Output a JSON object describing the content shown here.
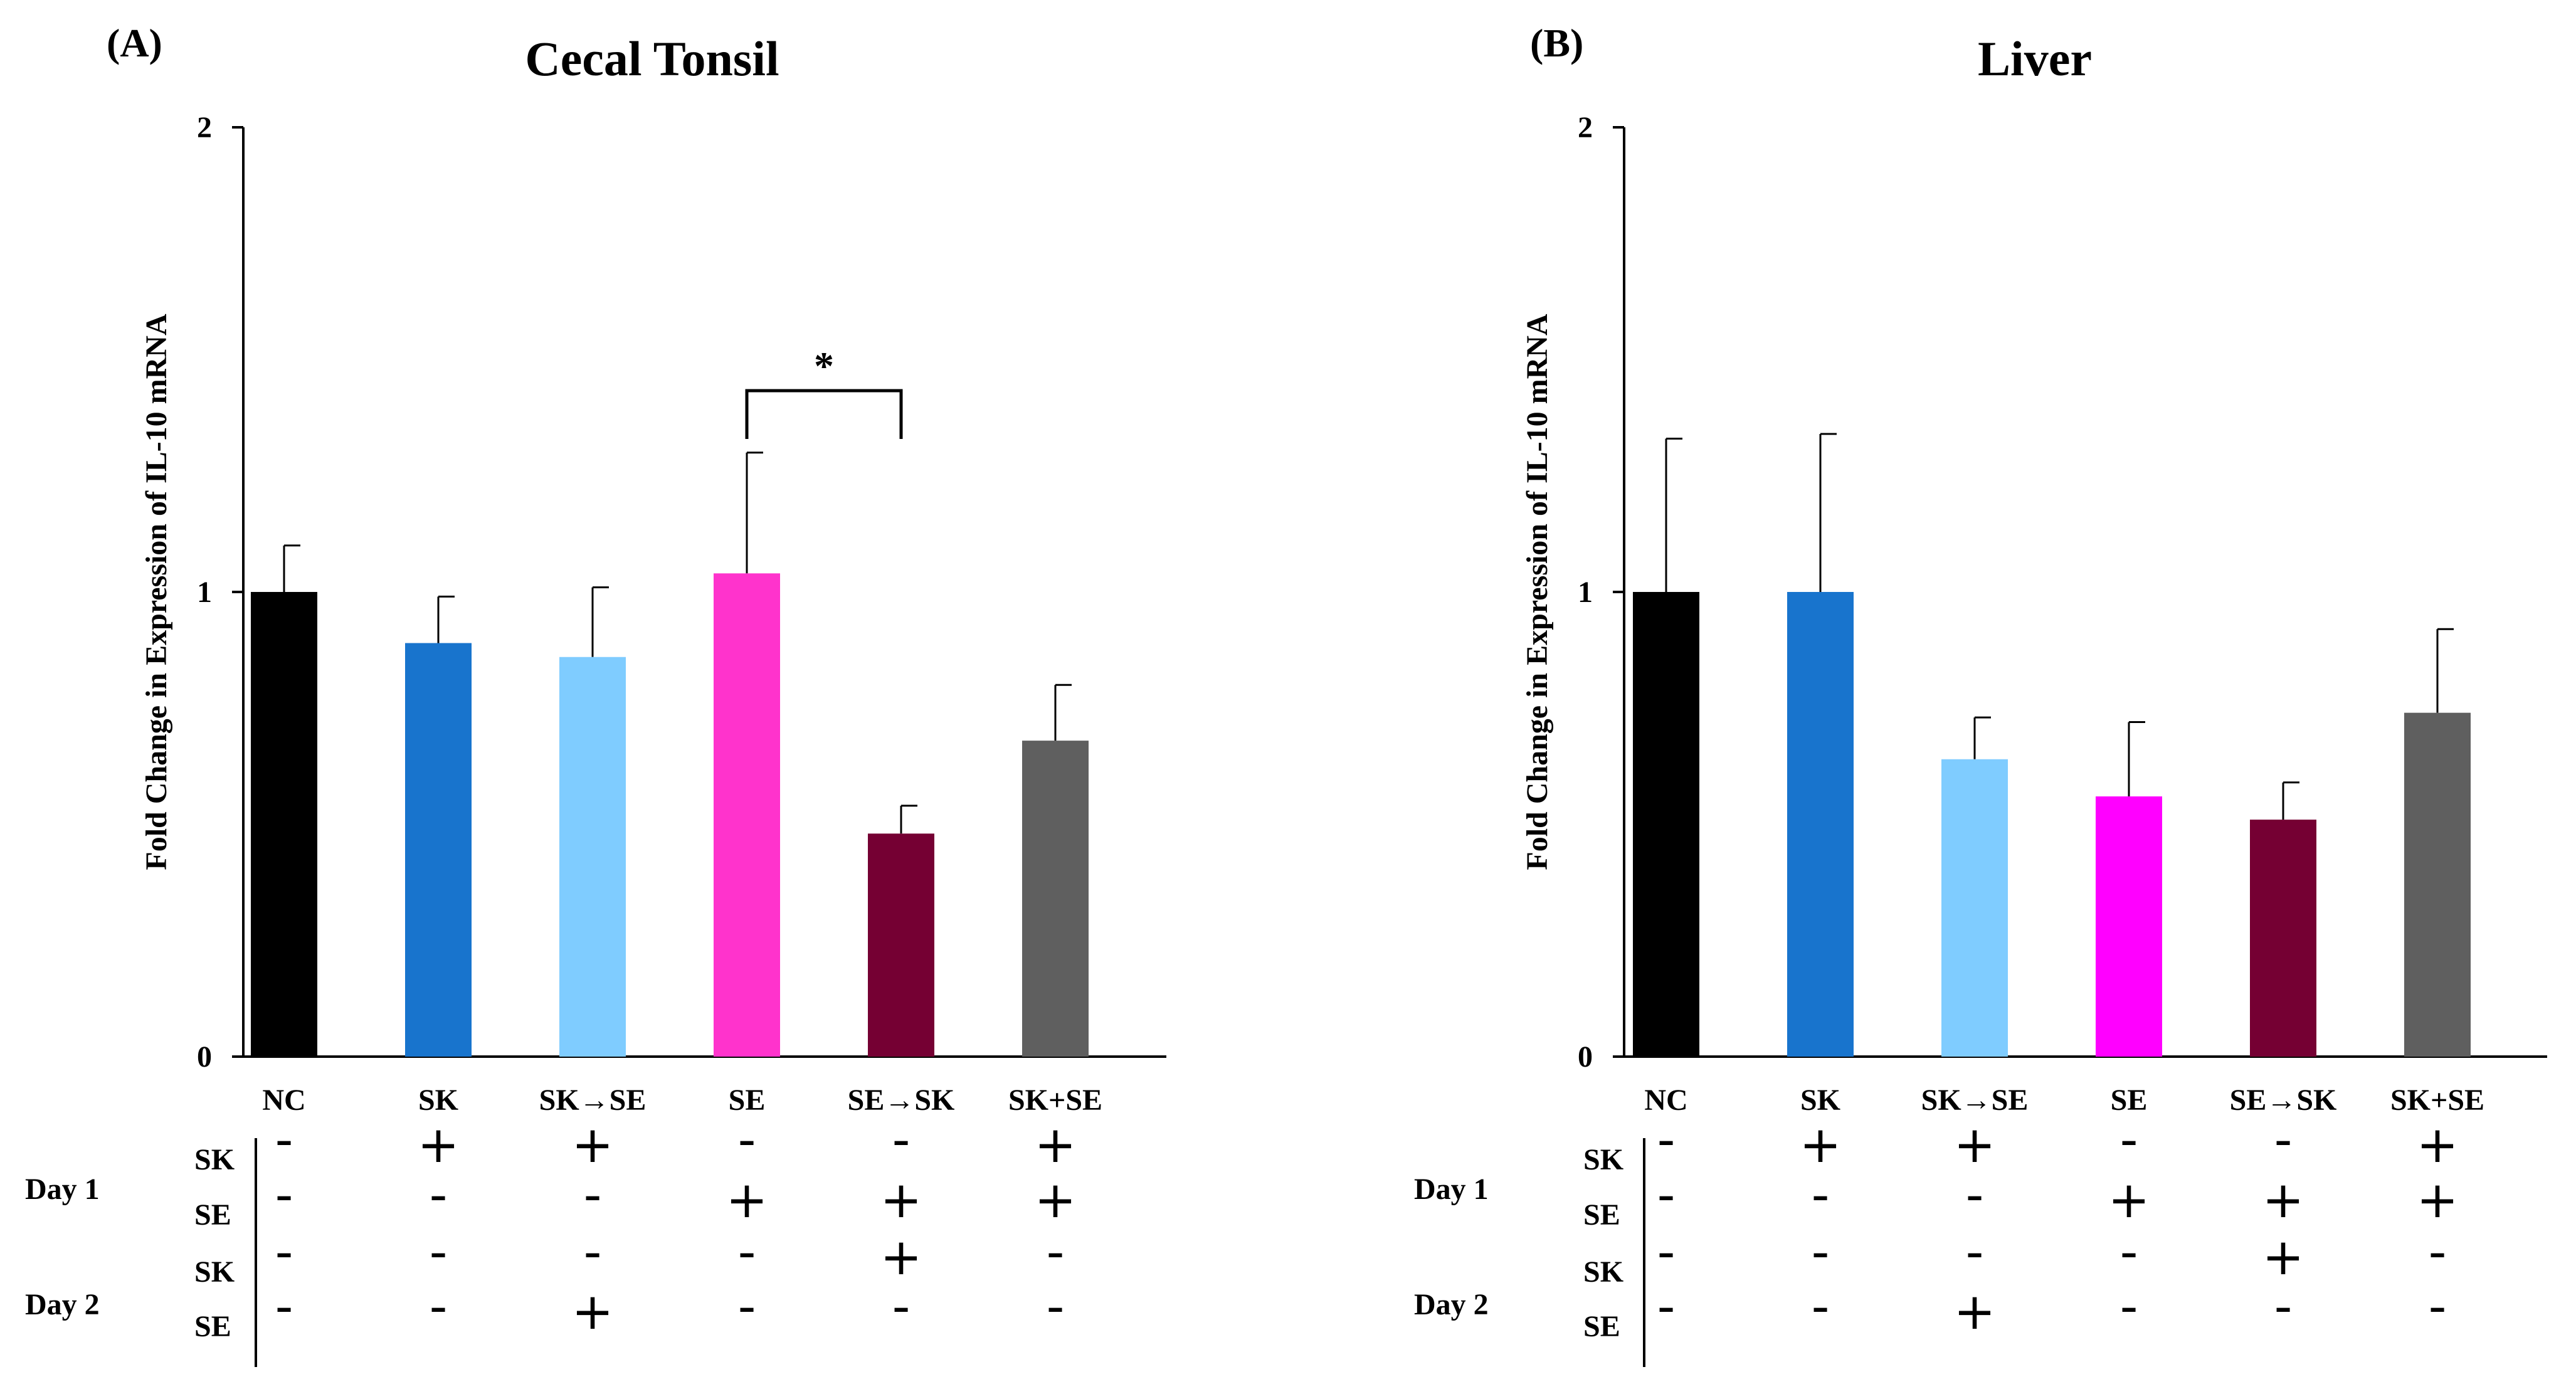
{
  "chart_data": [
    {
      "type": "bar",
      "panel_label": "(A)",
      "title": "Cecal Tonsil",
      "ylabel": "Fold Change in Expression of IL-10 mRNA",
      "xlabel": "",
      "ylim": [
        0,
        2
      ],
      "yticks": [
        "0",
        "1",
        "2"
      ],
      "categories": [
        "NC",
        "SK",
        "SK→SE",
        "SE",
        "SE→SK",
        "SK+SE"
      ],
      "values": [
        1.0,
        0.89,
        0.86,
        1.04,
        0.48,
        0.68
      ],
      "errors": [
        0.1,
        0.1,
        0.15,
        0.26,
        0.06,
        0.12
      ],
      "colors": [
        "#000000",
        "#1874CD",
        "#7FCCFF",
        "#FF33CC",
        "#750033",
        "#5F5F5F"
      ],
      "significance": {
        "between": [
          3,
          4
        ],
        "label": "*"
      },
      "treatment_table": {
        "groups": [
          {
            "label": "Day 1",
            "rows": [
              {
                "label": "SK",
                "marks": [
                  "-",
                  "+",
                  "+",
                  "-",
                  "-",
                  "+"
                ]
              },
              {
                "label": "SE",
                "marks": [
                  "-",
                  "-",
                  "-",
                  "+",
                  "+",
                  "+"
                ]
              }
            ]
          },
          {
            "label": "Day 2",
            "rows": [
              {
                "label": "SK",
                "marks": [
                  "-",
                  "-",
                  "-",
                  "-",
                  "+",
                  "-"
                ]
              },
              {
                "label": "SE",
                "marks": [
                  "-",
                  "-",
                  "+",
                  "-",
                  "-",
                  "-"
                ]
              }
            ]
          }
        ]
      }
    },
    {
      "type": "bar",
      "panel_label": "(B)",
      "title": "Liver",
      "ylabel": "Fold Change in Expression of IL-10 mRNA",
      "xlabel": "",
      "ylim": [
        0,
        2
      ],
      "yticks": [
        "0",
        "1",
        "2"
      ],
      "categories": [
        "NC",
        "SK",
        "SK→SE",
        "SE",
        "SE→SK",
        "SK+SE"
      ],
      "values": [
        1.0,
        1.0,
        0.64,
        0.56,
        0.51,
        0.74
      ],
      "errors": [
        0.33,
        0.34,
        0.09,
        0.16,
        0.08,
        0.18
      ],
      "colors": [
        "#000000",
        "#1874CD",
        "#7FCCFF",
        "#FF00FF",
        "#750033",
        "#5F5F5F"
      ],
      "treatment_table": {
        "groups": [
          {
            "label": "Day 1",
            "rows": [
              {
                "label": "SK",
                "marks": [
                  "-",
                  "+",
                  "+",
                  "-",
                  "-",
                  "+"
                ]
              },
              {
                "label": "SE",
                "marks": [
                  "-",
                  "-",
                  "-",
                  "+",
                  "+",
                  "+"
                ]
              }
            ]
          },
          {
            "label": "Day 2",
            "rows": [
              {
                "label": "SK",
                "marks": [
                  "-",
                  "-",
                  "-",
                  "-",
                  "+",
                  "-"
                ]
              },
              {
                "label": "SE",
                "marks": [
                  "-",
                  "-",
                  "+",
                  "-",
                  "-",
                  "-"
                ]
              }
            ]
          }
        ]
      }
    }
  ]
}
